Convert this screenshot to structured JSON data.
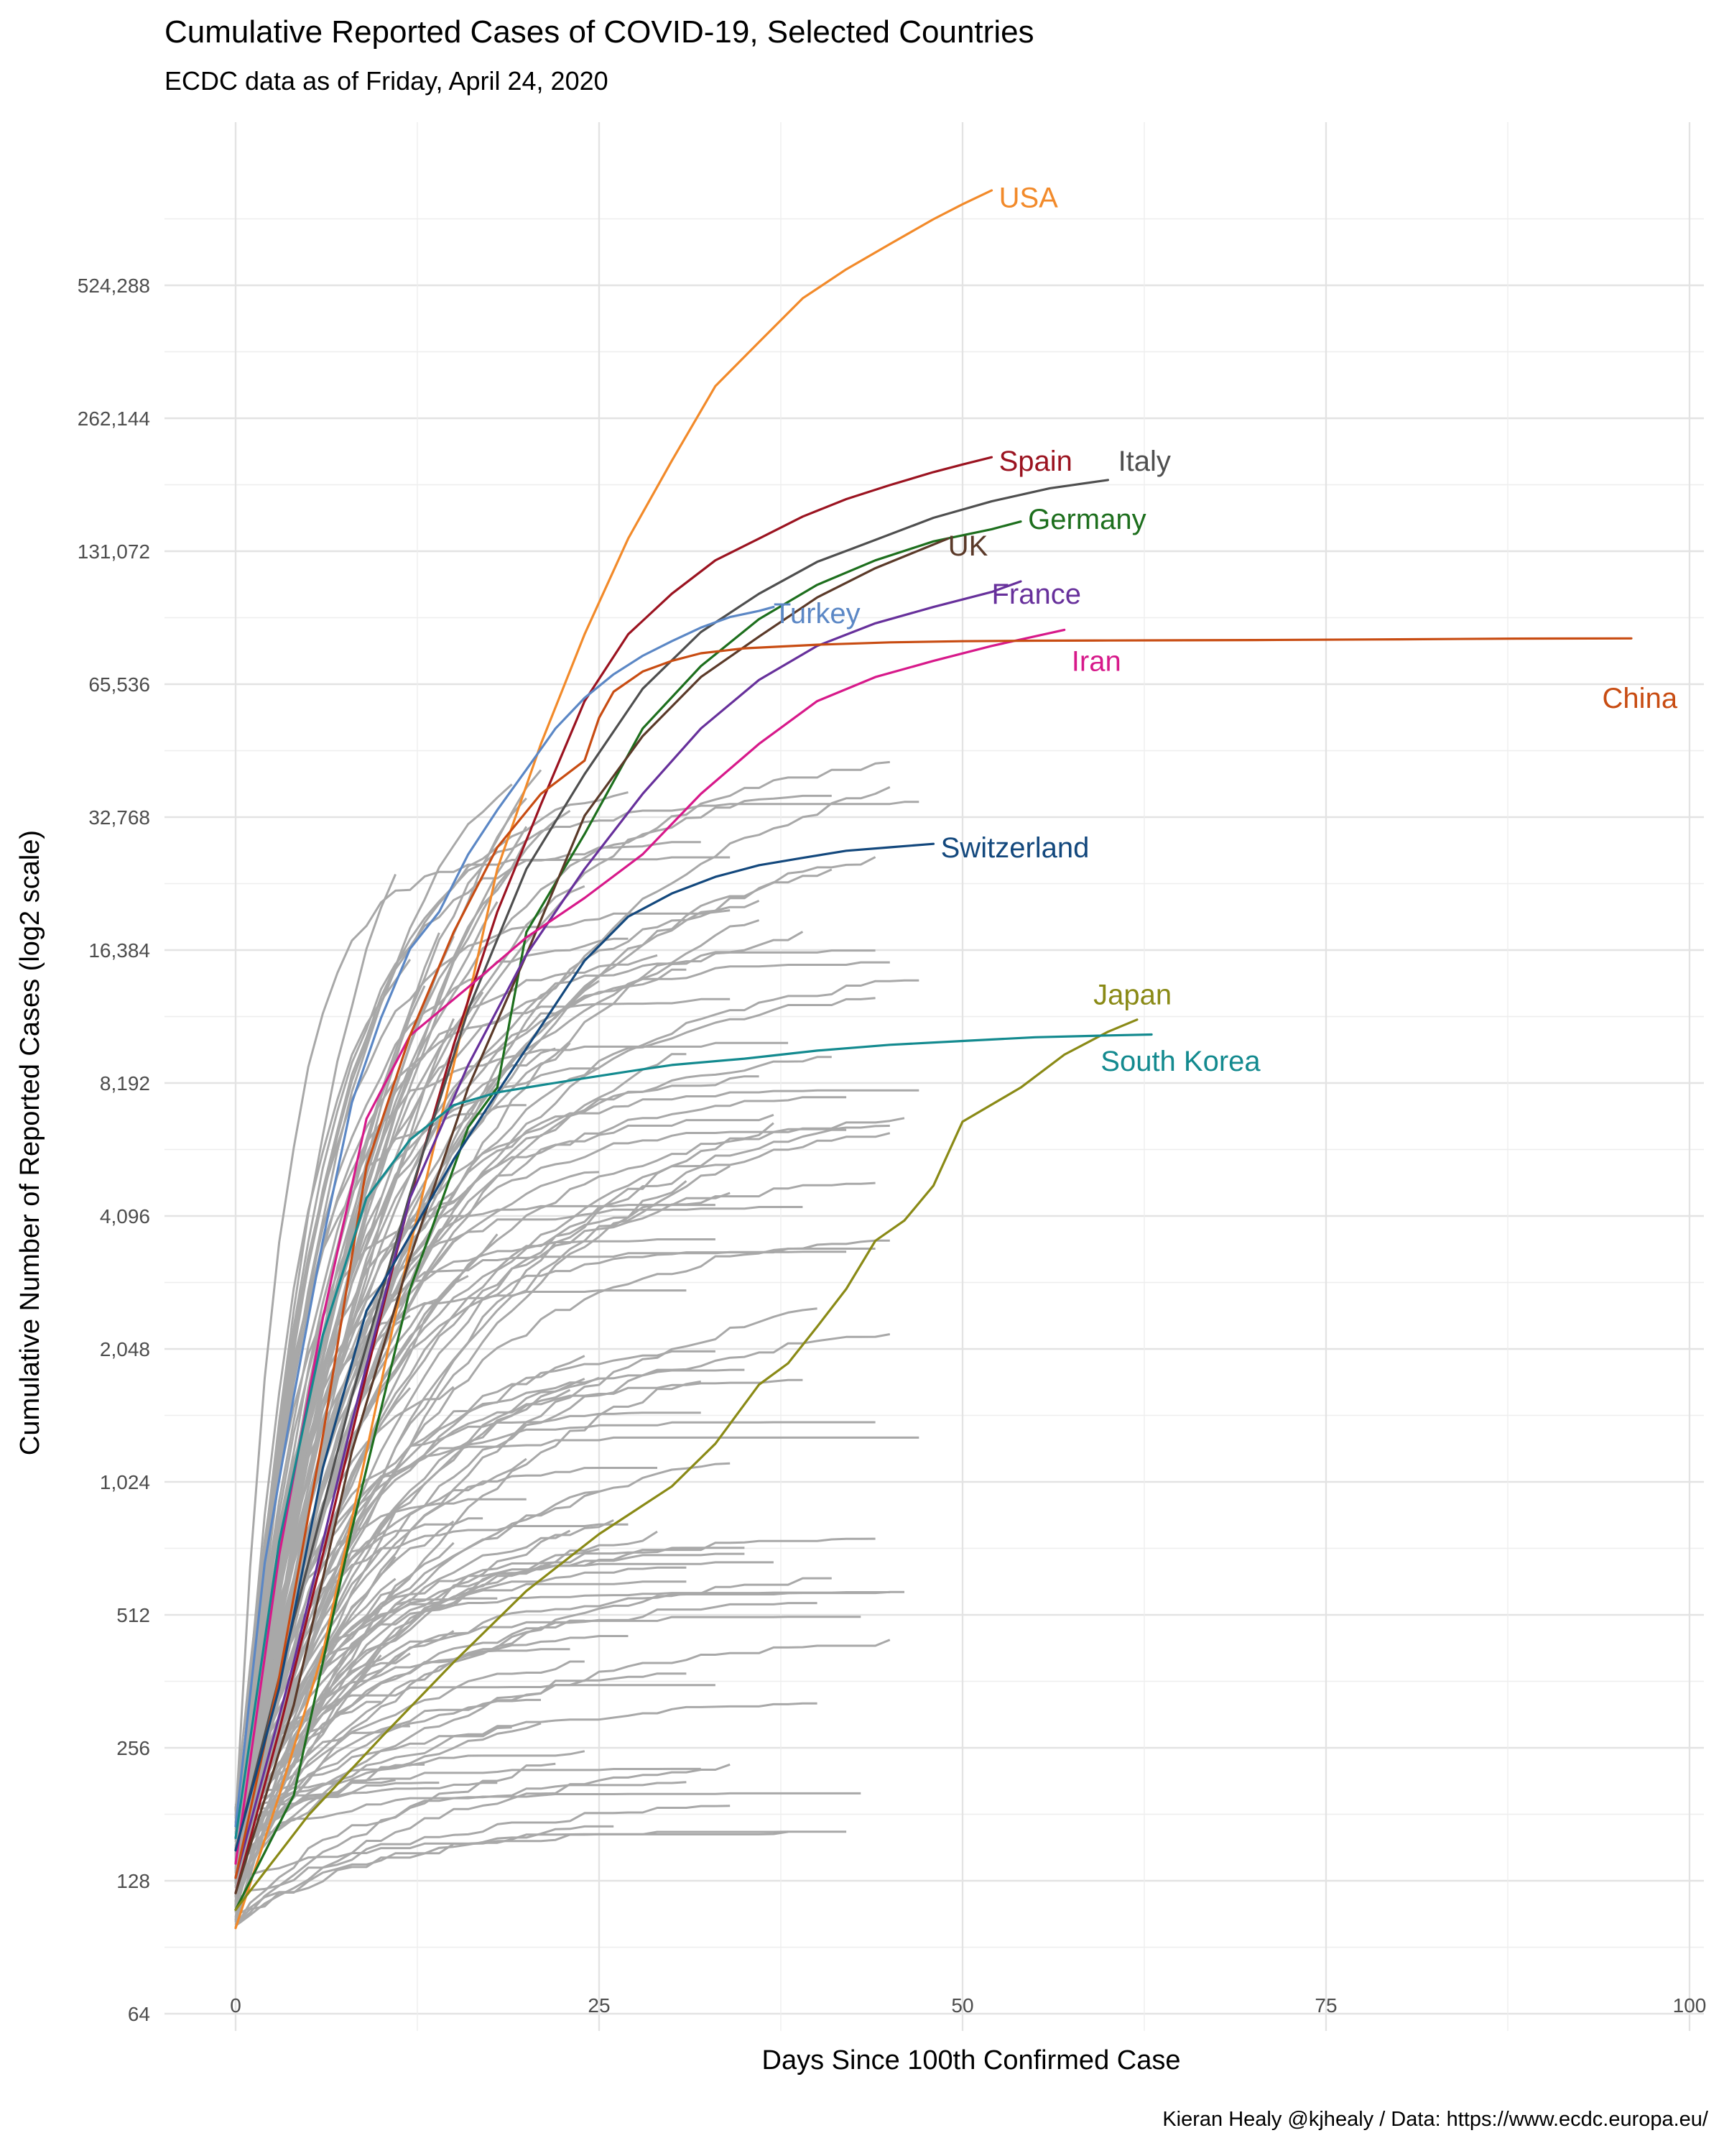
{
  "chart_data": {
    "type": "line",
    "title": "Cumulative Reported Cases of COVID-19, Selected Countries",
    "subtitle": "ECDC data as of Friday, April 24, 2020",
    "caption": "Kieran Healy @kjhealy / Data: https://www.ecdc.europa.eu/",
    "xlabel": "Days Since 100th Confirmed Case",
    "ylabel": "Cumulative Number of Reported Cases (log2 scale)",
    "y_scale": "log2",
    "xlim": [
      0,
      100
    ],
    "ylim": [
      64,
      1300000
    ],
    "x_ticks": [
      0,
      25,
      50,
      75,
      100
    ],
    "x_tick_labels": [
      "0",
      "25",
      "50",
      "75",
      "100"
    ],
    "y_ticks": [
      64,
      128,
      256,
      512,
      1024,
      2048,
      4096,
      8192,
      16384,
      32768,
      65536,
      131072,
      262144,
      524288
    ],
    "y_tick_labels": [
      "64",
      "128",
      "256",
      "512",
      "1,024",
      "2,048",
      "4,096",
      "8,192",
      "16,384",
      "32,768",
      "65,536",
      "131,072",
      "262,144",
      "524,288"
    ],
    "grid": true,
    "legend": "none",
    "highlighted_series": [
      {
        "name": "USA",
        "color": "#f28a2a",
        "label_at": [
          52.5,
          830000
        ],
        "x": [
          0,
          3,
          6,
          9,
          12,
          15,
          18,
          21,
          24,
          27,
          30,
          33,
          36,
          39,
          42,
          45,
          48,
          50,
          52
        ],
        "y": [
          100,
          200,
          420,
          1200,
          3500,
          9000,
          25000,
          48000,
          85000,
          140000,
          210000,
          310000,
          390000,
          490000,
          570000,
          650000,
          740000,
          800000,
          860000
        ]
      },
      {
        "name": "Spain",
        "color": "#9b1320",
        "label_at": [
          52.5,
          210000
        ],
        "x": [
          0,
          3,
          6,
          9,
          12,
          15,
          18,
          21,
          24,
          27,
          30,
          33,
          36,
          39,
          42,
          45,
          48,
          50,
          52
        ],
        "y": [
          120,
          280,
          700,
          1800,
          4500,
          10000,
          20000,
          35000,
          60000,
          85000,
          105000,
          125000,
          140000,
          157000,
          172000,
          185000,
          198000,
          206000,
          214000
        ]
      },
      {
        "name": "Italy",
        "color": "#4f4f4f",
        "label_at": [
          60.7,
          210000
        ],
        "x": [
          0,
          4,
          8,
          12,
          16,
          20,
          24,
          28,
          32,
          36,
          40,
          44,
          48,
          52,
          56,
          60
        ],
        "y": [
          150,
          500,
          1600,
          4600,
          12000,
          25000,
          41000,
          64000,
          86000,
          105000,
          124000,
          139000,
          156000,
          170000,
          182000,
          190000
        ]
      },
      {
        "name": "Germany",
        "color": "#1d6f1d",
        "label_at": [
          54.5,
          155000
        ],
        "x": [
          0,
          4,
          8,
          12,
          16,
          18,
          20,
          24,
          28,
          32,
          36,
          40,
          44,
          48,
          52,
          54
        ],
        "y": [
          110,
          200,
          800,
          2800,
          6500,
          8000,
          18000,
          30000,
          52000,
          72000,
          92000,
          110000,
          125000,
          138000,
          147000,
          153000
        ]
      },
      {
        "name": "UK",
        "color": "#5b3a29",
        "label_at": [
          49,
          135000
        ],
        "x": [
          0,
          4,
          8,
          12,
          16,
          20,
          24,
          28,
          32,
          36,
          40,
          44,
          49
        ],
        "y": [
          120,
          320,
          1200,
          3300,
          8000,
          16000,
          33000,
          50000,
          68000,
          84000,
          103000,
          120000,
          140000
        ]
      },
      {
        "name": "Turkey",
        "color": "#5b87c5",
        "label_at": [
          37,
          95000
        ],
        "x": [
          0,
          2,
          4,
          6,
          8,
          10,
          12,
          14,
          16,
          18,
          20,
          22,
          24,
          26,
          28,
          30,
          32,
          34,
          36,
          37
        ],
        "y": [
          170,
          670,
          1600,
          3600,
          7400,
          11500,
          16500,
          20000,
          27000,
          34000,
          42000,
          52000,
          61000,
          69000,
          76000,
          82000,
          88000,
          93000,
          96000,
          98000
        ]
      },
      {
        "name": "France",
        "color": "#67309b",
        "label_at": [
          52,
          105000
        ],
        "x": [
          0,
          4,
          8,
          12,
          16,
          20,
          24,
          28,
          32,
          36,
          40,
          44,
          48,
          52,
          54
        ],
        "y": [
          130,
          400,
          1400,
          4500,
          9000,
          16000,
          25000,
          37000,
          52000,
          67000,
          80000,
          90000,
          98000,
          106000,
          112000
        ]
      },
      {
        "name": "Iran",
        "color": "#d7198a",
        "label_at": [
          57.5,
          74000
        ],
        "x": [
          0,
          3,
          6,
          9,
          12,
          16,
          20,
          24,
          28,
          32,
          36,
          40,
          44,
          48,
          52,
          57
        ],
        "y": [
          140,
          700,
          2400,
          6800,
          10500,
          13500,
          17500,
          21500,
          27000,
          37000,
          48000,
          60000,
          68000,
          74000,
          80000,
          87000
        ]
      },
      {
        "name": "China",
        "color": "#c84c12",
        "label_at": [
          94,
          61000
        ],
        "x": [
          0,
          3,
          6,
          9,
          12,
          15,
          18,
          21,
          24,
          25,
          26,
          28,
          30,
          32,
          35,
          40,
          45,
          50,
          55,
          60,
          70,
          80,
          88,
          96
        ],
        "y": [
          130,
          370,
          1300,
          5300,
          10500,
          18000,
          28000,
          37000,
          44000,
          55000,
          63000,
          70000,
          74000,
          77000,
          79000,
          80500,
          81500,
          82000,
          82200,
          82300,
          82500,
          82800,
          83100,
          83200
        ]
      },
      {
        "name": "Switzerland",
        "color": "#13487d",
        "label_at": [
          48.5,
          28000
        ],
        "x": [
          0,
          3,
          6,
          9,
          12,
          15,
          18,
          21,
          24,
          27,
          30,
          33,
          36,
          39,
          42,
          45,
          48
        ],
        "y": [
          150,
          350,
          1100,
          2500,
          3700,
          5500,
          7800,
          11000,
          15500,
          19500,
          22000,
          24000,
          25500,
          26500,
          27500,
          28000,
          28500
        ]
      },
      {
        "name": "Japan",
        "color": "#8a8a16",
        "label_at": [
          59,
          13000
        ],
        "x": [
          0,
          5,
          10,
          15,
          20,
          25,
          30,
          33,
          36,
          38,
          40,
          42,
          44,
          46,
          48,
          50,
          54,
          57,
          60,
          62
        ],
        "y": [
          110,
          180,
          270,
          400,
          580,
          780,
          1000,
          1250,
          1700,
          1900,
          2300,
          2800,
          3600,
          4000,
          4800,
          6700,
          8000,
          9500,
          10700,
          11400
        ]
      },
      {
        "name": "South Korea",
        "color": "#138a8f",
        "label_at": [
          59.5,
          9200
        ],
        "x": [
          0,
          3,
          6,
          9,
          12,
          15,
          18,
          21,
          24,
          27,
          30,
          35,
          40,
          45,
          50,
          55,
          60,
          63
        ],
        "y": [
          160,
          750,
          2200,
          4500,
          6100,
          7300,
          7800,
          8100,
          8400,
          8700,
          9000,
          9300,
          9700,
          10000,
          10200,
          10400,
          10500,
          10550
        ]
      }
    ]
  }
}
